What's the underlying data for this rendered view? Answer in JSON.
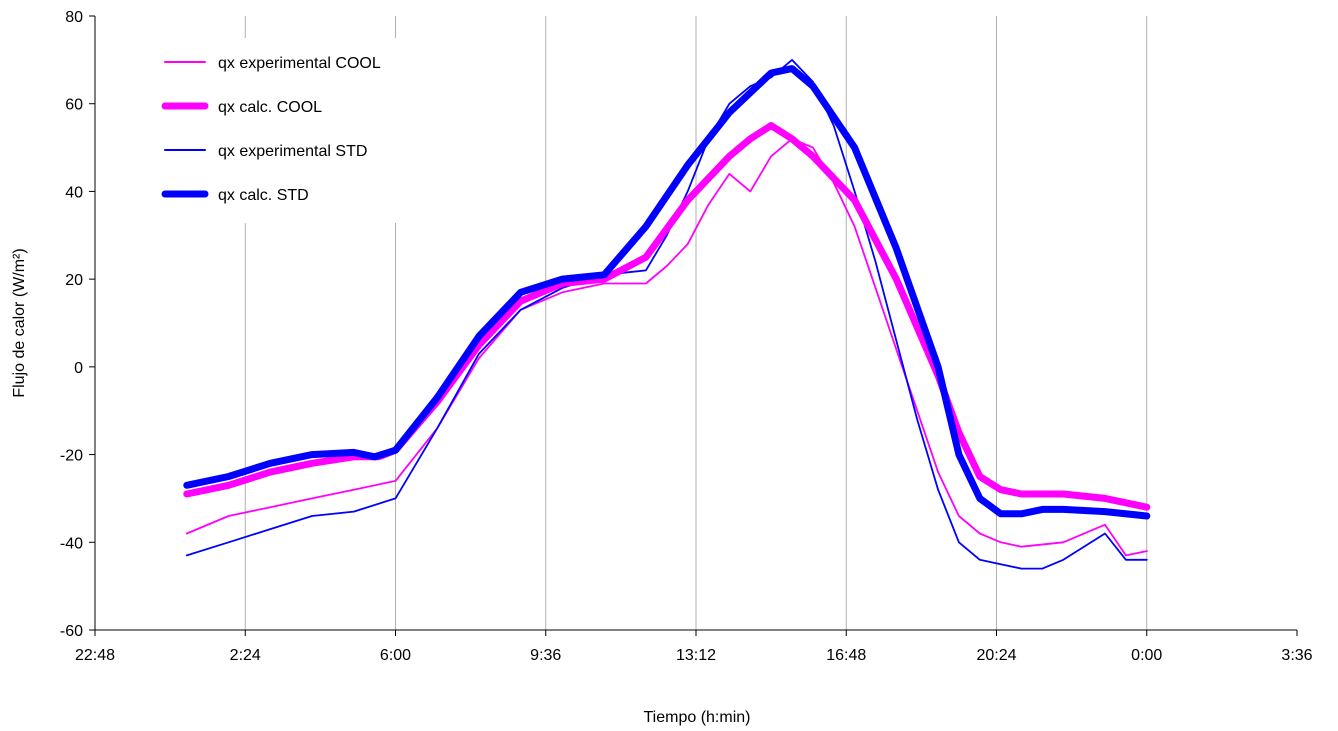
{
  "chart_data": {
    "type": "line",
    "title": "",
    "xlabel": "Tiempo (h:min)",
    "ylabel": "Flujo de calor (W/m²)",
    "x_ticks": [
      "22:48",
      "2:24",
      "6:00",
      "9:36",
      "13:12",
      "16:48",
      "20:24",
      "0:00",
      "3:36"
    ],
    "x_tick_hours": [
      -1.2,
      2.4,
      6.0,
      9.6,
      13.2,
      16.8,
      20.4,
      24.0,
      27.6
    ],
    "xlim_hours": [
      -1.2,
      27.6
    ],
    "ylim": [
      -60,
      80
    ],
    "y_ticks": [
      -60,
      -40,
      -20,
      0,
      20,
      40,
      60,
      80
    ],
    "grid": {
      "x_major": true,
      "y_major": false
    },
    "legend_position": "top-left",
    "colors": {
      "cool": "#ff00ff",
      "std": "#0000ff"
    },
    "series": [
      {
        "name": "qx experimental COOL",
        "color": "#ff00ff",
        "style": "thin",
        "x_hours": [
          1.0,
          2.0,
          3.0,
          4.0,
          5.0,
          6.0,
          7.0,
          8.0,
          9.0,
          10.0,
          11.0,
          12.0,
          12.5,
          13.0,
          13.5,
          14.0,
          14.5,
          15.0,
          15.5,
          16.0,
          16.5,
          17.0,
          17.5,
          18.0,
          18.5,
          19.0,
          19.5,
          20.0,
          20.5,
          21.0,
          22.0,
          23.0,
          23.5,
          24.0
        ],
        "values": [
          -38,
          -34,
          -32,
          -30,
          -28,
          -26,
          -14,
          2,
          13,
          17,
          19,
          19,
          23,
          28,
          37,
          44,
          40,
          48,
          52,
          50,
          42,
          32,
          18,
          4,
          -10,
          -24,
          -34,
          -38,
          -40,
          -41,
          -40,
          -36,
          -43,
          -42
        ]
      },
      {
        "name": "qx calc. COOL",
        "color": "#ff00ff",
        "style": "thick",
        "x_hours": [
          1.0,
          2.0,
          3.0,
          4.0,
          5.0,
          5.6,
          6.0,
          7.0,
          8.0,
          9.0,
          10.0,
          11.0,
          12.0,
          13.0,
          14.0,
          14.5,
          15.0,
          15.5,
          16.0,
          17.0,
          18.0,
          19.0,
          19.5,
          20.0,
          20.5,
          21.0,
          22.0,
          23.0,
          24.0
        ],
        "values": [
          -29,
          -27,
          -24,
          -22,
          -20.5,
          -20.5,
          -19,
          -8,
          5,
          15,
          19,
          20,
          25,
          38,
          48,
          52,
          55,
          52,
          48,
          38,
          20,
          -2,
          -15,
          -25,
          -28,
          -29,
          -29,
          -30,
          -32
        ]
      },
      {
        "name": "qx experimental STD",
        "color": "#0000ff",
        "style": "thin",
        "x_hours": [
          1.0,
          2.0,
          3.0,
          4.0,
          5.0,
          6.0,
          7.0,
          8.0,
          9.0,
          10.0,
          11.0,
          12.0,
          12.5,
          13.0,
          13.5,
          14.0,
          14.5,
          15.0,
          15.5,
          16.0,
          16.5,
          17.0,
          17.5,
          18.0,
          18.5,
          19.0,
          19.5,
          20.0,
          20.5,
          21.0,
          21.5,
          22.0,
          23.0,
          23.5,
          24.0
        ],
        "values": [
          -43,
          -40,
          -37,
          -34,
          -33,
          -30,
          -14,
          3,
          13,
          18,
          21,
          22,
          30,
          40,
          52,
          60,
          64,
          66,
          70,
          65,
          55,
          40,
          24,
          6,
          -12,
          -28,
          -40,
          -44,
          -45,
          -46,
          -46,
          -44,
          -38,
          -44,
          -44
        ]
      },
      {
        "name": "qx calc. STD",
        "color": "#0000ff",
        "style": "thick",
        "x_hours": [
          1.0,
          2.0,
          3.0,
          4.0,
          5.0,
          5.5,
          6.0,
          7.0,
          8.0,
          9.0,
          10.0,
          11.0,
          12.0,
          13.0,
          14.0,
          15.0,
          15.5,
          16.0,
          17.0,
          18.0,
          19.0,
          19.5,
          20.0,
          20.5,
          21.0,
          21.5,
          22.0,
          23.0,
          24.0
        ],
        "values": [
          -27,
          -25,
          -22,
          -20,
          -19.5,
          -20.5,
          -19,
          -7,
          7,
          17,
          20,
          21,
          32,
          46,
          58,
          67,
          68,
          64,
          50,
          27,
          0,
          -20,
          -30,
          -33.5,
          -33.5,
          -32.5,
          -32.5,
          -33,
          -34
        ]
      }
    ]
  }
}
